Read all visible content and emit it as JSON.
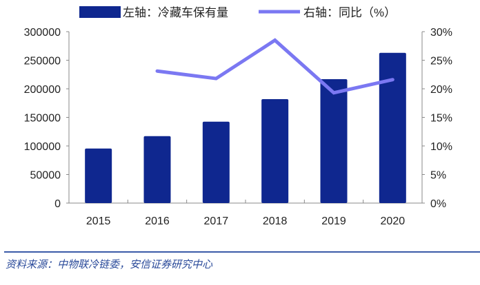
{
  "chart_data": {
    "type": "bar+line",
    "categories": [
      "2015",
      "2016",
      "2017",
      "2018",
      "2019",
      "2020"
    ],
    "series": [
      {
        "name": "左轴：冷藏车保有量",
        "type": "bar",
        "axis": "left",
        "color": "#0f278f",
        "values": [
          95500,
          117200,
          142500,
          181900,
          216900,
          263000
        ]
      },
      {
        "name": "右轴：同比（%）",
        "type": "line",
        "axis": "right",
        "color": "#7b78f2",
        "values": [
          null,
          23.1,
          21.8,
          28.5,
          19.3,
          21.6
        ]
      }
    ],
    "left_axis": {
      "ylim": [
        0,
        300000
      ],
      "ticks": [
        "0",
        "50000",
        "100000",
        "150000",
        "200000",
        "250000",
        "300000"
      ]
    },
    "right_axis": {
      "ylim": [
        0,
        30
      ],
      "ticks": [
        "0%",
        "5%",
        "10%",
        "15%",
        "20%",
        "25%",
        "30%"
      ]
    },
    "grid": false,
    "legend_position": "top"
  },
  "source": "资料来源：中物联冷链委，安信证券研究中心"
}
